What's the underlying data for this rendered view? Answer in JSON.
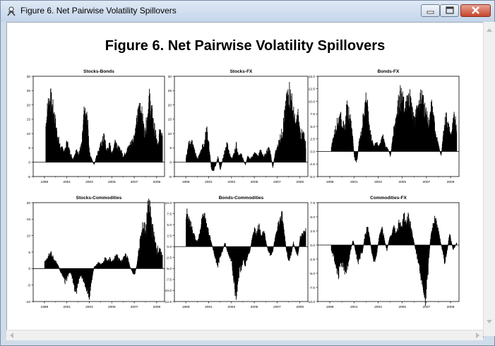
{
  "window": {
    "title": "Figure 6. Net Pairwise Volatility Spillovers",
    "icon": "app-figure-icon"
  },
  "figure_title": "Figure 6. Net Pairwise Volatility Spillovers",
  "chart_data": [
    {
      "type": "bar",
      "title": "Stocks-Bonds",
      "ylim": [
        -5,
        30
      ],
      "yticks": [
        "30",
        "25",
        "20",
        "15",
        "10",
        "5",
        "0",
        "-5"
      ],
      "xticks": [
        "1999",
        "2001",
        "2003",
        "2005",
        "2007",
        "2009"
      ],
      "x_range": [
        1998.0,
        2009.7
      ],
      "x_start": 1999.1,
      "x_end": 2009.5,
      "keypoints": [
        [
          1999.1,
          13
        ],
        [
          1999.3,
          20
        ],
        [
          1999.5,
          22
        ],
        [
          1999.8,
          17
        ],
        [
          2000.1,
          10
        ],
        [
          2000.4,
          5
        ],
        [
          2000.8,
          4
        ],
        [
          2001.0,
          7
        ],
        [
          2001.2,
          4
        ],
        [
          2001.5,
          1
        ],
        [
          2001.8,
          4
        ],
        [
          2002.0,
          3
        ],
        [
          2002.3,
          6
        ],
        [
          2002.5,
          16
        ],
        [
          2002.8,
          15
        ],
        [
          2003.0,
          3
        ],
        [
          2003.2,
          1
        ],
        [
          2003.4,
          -1
        ],
        [
          2003.6,
          2
        ],
        [
          2003.9,
          5
        ],
        [
          2004.1,
          7
        ],
        [
          2004.3,
          9
        ],
        [
          2004.5,
          4
        ],
        [
          2004.8,
          6
        ],
        [
          2005.0,
          3
        ],
        [
          2005.3,
          8
        ],
        [
          2005.5,
          5
        ],
        [
          2005.8,
          4
        ],
        [
          2006.0,
          2
        ],
        [
          2006.3,
          4
        ],
        [
          2006.6,
          6
        ],
        [
          2006.9,
          8
        ],
        [
          2007.1,
          11
        ],
        [
          2007.3,
          16
        ],
        [
          2007.5,
          20
        ],
        [
          2007.7,
          15
        ],
        [
          2007.9,
          10
        ],
        [
          2008.1,
          14
        ],
        [
          2008.3,
          22
        ],
        [
          2008.5,
          18
        ],
        [
          2008.7,
          13
        ],
        [
          2008.9,
          9
        ],
        [
          2009.1,
          5
        ],
        [
          2009.3,
          13
        ],
        [
          2009.5,
          10
        ]
      ]
    },
    {
      "type": "bar",
      "title": "Stocks-FX",
      "ylim": [
        -5,
        30
      ],
      "yticks": [
        "30",
        "25",
        "20",
        "15",
        "10",
        "5",
        "0",
        "-5"
      ],
      "xticks": [
        "1999",
        "2001",
        "2003",
        "2005",
        "2007",
        "2009"
      ],
      "x_range": [
        1998.0,
        2009.7
      ],
      "x_start": 1999.0,
      "x_end": 2009.5,
      "keypoints": [
        [
          1999.0,
          2
        ],
        [
          1999.2,
          6
        ],
        [
          1999.5,
          7
        ],
        [
          1999.8,
          3
        ],
        [
          2000.0,
          1
        ],
        [
          2000.3,
          4
        ],
        [
          2000.6,
          7
        ],
        [
          2000.8,
          11
        ],
        [
          2001.0,
          6
        ],
        [
          2001.2,
          -2
        ],
        [
          2001.4,
          -3
        ],
        [
          2001.6,
          -1
        ],
        [
          2001.8,
          2
        ],
        [
          2002.0,
          -3
        ],
        [
          2002.2,
          1
        ],
        [
          2002.4,
          4
        ],
        [
          2002.6,
          7
        ],
        [
          2002.8,
          3
        ],
        [
          2003.0,
          1
        ],
        [
          2003.2,
          3
        ],
        [
          2003.4,
          6
        ],
        [
          2003.6,
          2
        ],
        [
          2003.8,
          3
        ],
        [
          2004.0,
          1
        ],
        [
          2004.2,
          -1
        ],
        [
          2004.4,
          2
        ],
        [
          2004.6,
          1
        ],
        [
          2004.8,
          2
        ],
        [
          2005.0,
          3
        ],
        [
          2005.3,
          2
        ],
        [
          2005.5,
          4
        ],
        [
          2005.8,
          2
        ],
        [
          2006.0,
          3
        ],
        [
          2006.2,
          5
        ],
        [
          2006.4,
          3
        ],
        [
          2006.6,
          -2
        ],
        [
          2006.8,
          3
        ],
        [
          2007.0,
          5
        ],
        [
          2007.2,
          8
        ],
        [
          2007.4,
          10
        ],
        [
          2007.6,
          15
        ],
        [
          2007.8,
          20
        ],
        [
          2008.0,
          25
        ],
        [
          2008.2,
          22
        ],
        [
          2008.4,
          17
        ],
        [
          2008.6,
          12
        ],
        [
          2008.8,
          16
        ],
        [
          2009.0,
          10
        ],
        [
          2009.3,
          9
        ],
        [
          2009.5,
          6
        ]
      ]
    },
    {
      "type": "bar",
      "title": "Bonds-FX",
      "ylim": [
        -5.0,
        15.0
      ],
      "yticks": [
        "15.0",
        "12.5",
        "10.0",
        "7.5",
        "5.0",
        "2.5",
        "0.0",
        "-2.5",
        "-5.0"
      ],
      "xticks": [
        "1999",
        "2001",
        "2003",
        "2005",
        "2007",
        "2009"
      ],
      "x_range": [
        1998.0,
        2009.7
      ],
      "x_start": 1999.1,
      "x_end": 2009.5,
      "keypoints": [
        [
          1999.1,
          1
        ],
        [
          1999.3,
          3
        ],
        [
          1999.5,
          5
        ],
        [
          1999.8,
          7
        ],
        [
          2000.0,
          6
        ],
        [
          2000.2,
          4
        ],
        [
          2000.4,
          9
        ],
        [
          2000.6,
          7
        ],
        [
          2000.8,
          5
        ],
        [
          2001.0,
          -1
        ],
        [
          2001.2,
          -2.5
        ],
        [
          2001.4,
          2
        ],
        [
          2001.6,
          4
        ],
        [
          2001.8,
          8
        ],
        [
          2002.0,
          11
        ],
        [
          2002.2,
          6
        ],
        [
          2002.4,
          3
        ],
        [
          2002.6,
          1
        ],
        [
          2002.8,
          2
        ],
        [
          2003.0,
          1
        ],
        [
          2003.2,
          2
        ],
        [
          2003.4,
          3
        ],
        [
          2003.6,
          1
        ],
        [
          2003.8,
          0.5
        ],
        [
          2004.0,
          -1
        ],
        [
          2004.2,
          3
        ],
        [
          2004.4,
          6
        ],
        [
          2004.6,
          9
        ],
        [
          2004.8,
          11
        ],
        [
          2005.0,
          10
        ],
        [
          2005.2,
          8
        ],
        [
          2005.4,
          10
        ],
        [
          2005.6,
          11
        ],
        [
          2005.8,
          8
        ],
        [
          2006.0,
          6
        ],
        [
          2006.2,
          8
        ],
        [
          2006.4,
          10
        ],
        [
          2006.6,
          11
        ],
        [
          2006.8,
          9
        ],
        [
          2007.0,
          7
        ],
        [
          2007.2,
          5
        ],
        [
          2007.4,
          9
        ],
        [
          2007.6,
          6
        ],
        [
          2007.8,
          3
        ],
        [
          2008.0,
          1
        ],
        [
          2008.2,
          -1
        ],
        [
          2008.4,
          4
        ],
        [
          2008.6,
          7
        ],
        [
          2008.8,
          5
        ],
        [
          2009.0,
          3
        ],
        [
          2009.3,
          7
        ],
        [
          2009.5,
          5
        ]
      ]
    },
    {
      "type": "bar",
      "title": "Stocks-Commodities",
      "ylim": [
        -10,
        20
      ],
      "yticks": [
        "20",
        "15",
        "10",
        "5",
        "0",
        "-5",
        "-10"
      ],
      "xticks": [
        "1999",
        "2001",
        "2003",
        "2005",
        "2007",
        "2009"
      ],
      "x_range": [
        1998.0,
        2009.7
      ],
      "x_start": 1999.0,
      "x_end": 2009.5,
      "keypoints": [
        [
          1999.0,
          2
        ],
        [
          1999.2,
          3
        ],
        [
          1999.4,
          4
        ],
        [
          1999.6,
          4.5
        ],
        [
          1999.8,
          3
        ],
        [
          2000.0,
          2
        ],
        [
          2000.2,
          1
        ],
        [
          2000.4,
          -1
        ],
        [
          2000.6,
          -2
        ],
        [
          2000.8,
          -4
        ],
        [
          2001.0,
          -3
        ],
        [
          2001.2,
          -1
        ],
        [
          2001.4,
          -2
        ],
        [
          2001.6,
          -5
        ],
        [
          2001.8,
          -7
        ],
        [
          2002.0,
          -4
        ],
        [
          2002.2,
          -2
        ],
        [
          2002.4,
          -3
        ],
        [
          2002.6,
          -5
        ],
        [
          2002.8,
          -7
        ],
        [
          2003.0,
          -8
        ],
        [
          2003.2,
          -3
        ],
        [
          2003.4,
          0.5
        ],
        [
          2003.6,
          1
        ],
        [
          2003.8,
          2
        ],
        [
          2004.0,
          1
        ],
        [
          2004.2,
          2
        ],
        [
          2004.4,
          3
        ],
        [
          2004.6,
          2
        ],
        [
          2004.8,
          3
        ],
        [
          2005.0,
          2
        ],
        [
          2005.2,
          3
        ],
        [
          2005.4,
          4
        ],
        [
          2005.6,
          3
        ],
        [
          2005.8,
          2
        ],
        [
          2006.0,
          3
        ],
        [
          2006.2,
          4
        ],
        [
          2006.4,
          3
        ],
        [
          2006.6,
          0.5
        ],
        [
          2006.8,
          -1
        ],
        [
          2007.0,
          -2
        ],
        [
          2007.2,
          1
        ],
        [
          2007.4,
          6
        ],
        [
          2007.6,
          10
        ],
        [
          2007.8,
          13
        ],
        [
          2008.0,
          11
        ],
        [
          2008.2,
          18
        ],
        [
          2008.4,
          17
        ],
        [
          2008.6,
          12
        ],
        [
          2008.8,
          8
        ],
        [
          2009.0,
          6
        ],
        [
          2009.3,
          5
        ],
        [
          2009.5,
          4
        ]
      ]
    },
    {
      "type": "bar",
      "title": "Bonds-Commodities",
      "ylim": [
        -12.5,
        10.0
      ],
      "yticks": [
        "10.0",
        "7.5",
        "5.0",
        "2.5",
        "0.0",
        "-2.5",
        "-5.0",
        "-7.5",
        "-10.0",
        "-12.5"
      ],
      "xticks": [
        "1999",
        "2001",
        "2003",
        "2005",
        "2007",
        "2009"
      ],
      "x_range": [
        1998.0,
        2009.7
      ],
      "x_start": 1999.0,
      "x_end": 2009.5,
      "keypoints": [
        [
          1999.0,
          8
        ],
        [
          1999.2,
          6
        ],
        [
          1999.4,
          5
        ],
        [
          1999.6,
          3
        ],
        [
          1999.8,
          2
        ],
        [
          2000.0,
          1
        ],
        [
          2000.2,
          3
        ],
        [
          2000.4,
          6
        ],
        [
          2000.6,
          7
        ],
        [
          2000.8,
          5
        ],
        [
          2001.0,
          3
        ],
        [
          2001.2,
          1
        ],
        [
          2001.4,
          -1
        ],
        [
          2001.6,
          -3
        ],
        [
          2001.8,
          -4
        ],
        [
          2002.0,
          -2
        ],
        [
          2002.2,
          -1
        ],
        [
          2002.4,
          1
        ],
        [
          2002.6,
          -1
        ],
        [
          2002.8,
          -2
        ],
        [
          2003.0,
          -4
        ],
        [
          2003.2,
          -8
        ],
        [
          2003.4,
          -11
        ],
        [
          2003.6,
          -7
        ],
        [
          2003.8,
          -5
        ],
        [
          2004.0,
          -3
        ],
        [
          2004.2,
          -4
        ],
        [
          2004.4,
          -2
        ],
        [
          2004.6,
          -1
        ],
        [
          2004.8,
          2
        ],
        [
          2005.0,
          4
        ],
        [
          2005.2,
          3
        ],
        [
          2005.4,
          5
        ],
        [
          2005.6,
          2
        ],
        [
          2005.8,
          4
        ],
        [
          2006.0,
          1
        ],
        [
          2006.2,
          -1
        ],
        [
          2006.4,
          -2
        ],
        [
          2006.6,
          -1
        ],
        [
          2006.8,
          2
        ],
        [
          2007.0,
          4
        ],
        [
          2007.2,
          6
        ],
        [
          2007.4,
          7
        ],
        [
          2007.6,
          3
        ],
        [
          2007.8,
          -1
        ],
        [
          2008.0,
          -3
        ],
        [
          2008.2,
          -2
        ],
        [
          2008.4,
          1
        ],
        [
          2008.6,
          -1
        ],
        [
          2008.8,
          -2
        ],
        [
          2009.0,
          2
        ],
        [
          2009.3,
          3
        ],
        [
          2009.5,
          4
        ]
      ]
    },
    {
      "type": "bar",
      "title": "Commodities-FX",
      "ylim": [
        -10.0,
        7.5
      ],
      "yticks": [
        "7.5",
        "5.0",
        "2.5",
        "0.0",
        "-2.5",
        "-5.0",
        "-7.5",
        "-10.0"
      ],
      "xticks": [
        "1999",
        "2001",
        "2003",
        "2005",
        "2007",
        "2009"
      ],
      "x_range": [
        1998.0,
        2009.7
      ],
      "x_start": 1999.1,
      "x_end": 2009.5,
      "keypoints": [
        [
          1999.1,
          -1
        ],
        [
          1999.3,
          -2
        ],
        [
          1999.5,
          -4
        ],
        [
          1999.7,
          -5
        ],
        [
          1999.9,
          -3
        ],
        [
          2000.1,
          -4
        ],
        [
          2000.3,
          -5
        ],
        [
          2000.5,
          -3
        ],
        [
          2000.7,
          -1
        ],
        [
          2000.9,
          1
        ],
        [
          2001.1,
          -1
        ],
        [
          2001.3,
          -3
        ],
        [
          2001.5,
          -2
        ],
        [
          2001.7,
          -1
        ],
        [
          2001.9,
          2
        ],
        [
          2002.1,
          3
        ],
        [
          2002.3,
          1
        ],
        [
          2002.5,
          -2
        ],
        [
          2002.7,
          -3
        ],
        [
          2002.9,
          -1
        ],
        [
          2003.1,
          2
        ],
        [
          2003.3,
          3
        ],
        [
          2003.5,
          1
        ],
        [
          2003.7,
          -1
        ],
        [
          2003.9,
          1
        ],
        [
          2004.1,
          2
        ],
        [
          2004.3,
          3
        ],
        [
          2004.5,
          2
        ],
        [
          2004.7,
          4
        ],
        [
          2004.9,
          3
        ],
        [
          2005.1,
          5
        ],
        [
          2005.3,
          4
        ],
        [
          2005.5,
          5
        ],
        [
          2005.7,
          3
        ],
        [
          2005.9,
          1
        ],
        [
          2006.1,
          -1
        ],
        [
          2006.3,
          -3
        ],
        [
          2006.5,
          -5
        ],
        [
          2006.7,
          -7
        ],
        [
          2006.9,
          -9
        ],
        [
          2007.1,
          -5
        ],
        [
          2007.3,
          1
        ],
        [
          2007.5,
          3
        ],
        [
          2007.7,
          5
        ],
        [
          2007.9,
          3
        ],
        [
          2008.1,
          1
        ],
        [
          2008.3,
          -1
        ],
        [
          2008.5,
          -3
        ],
        [
          2008.7,
          -1
        ],
        [
          2008.9,
          2
        ],
        [
          2009.2,
          -1
        ],
        [
          2009.5,
          0.5
        ]
      ]
    }
  ]
}
